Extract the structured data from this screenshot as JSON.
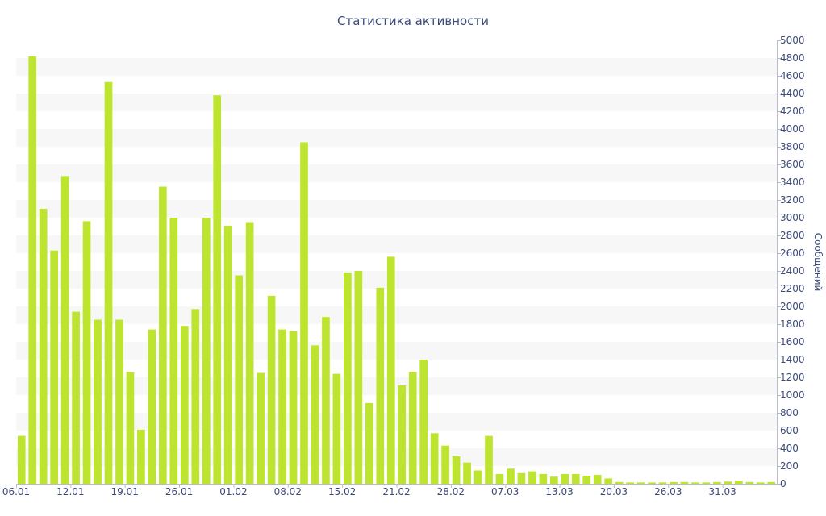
{
  "chart_data": {
    "type": "bar",
    "title": "Статистика активности",
    "xlabel": "",
    "ylabel": "Сообщений",
    "ylim": [
      0,
      5000
    ],
    "y_ticks": [
      0,
      200,
      400,
      600,
      800,
      1000,
      1200,
      1400,
      1600,
      1800,
      2000,
      2200,
      2400,
      2600,
      2800,
      3000,
      3200,
      3400,
      3600,
      3800,
      4000,
      4200,
      4400,
      4600,
      4800,
      5000
    ],
    "y_axis_position": "right",
    "grid": "alternating horizontal bands",
    "x_tick_labels": [
      {
        "label": "06.01",
        "index": 0
      },
      {
        "label": "12.01",
        "index": 5
      },
      {
        "label": "19.01",
        "index": 10
      },
      {
        "label": "26.01",
        "index": 15
      },
      {
        "label": "01.02",
        "index": 20
      },
      {
        "label": "08.02",
        "index": 25
      },
      {
        "label": "15.02",
        "index": 30
      },
      {
        "label": "21.02",
        "index": 35
      },
      {
        "label": "28.02",
        "index": 40
      },
      {
        "label": "07.03",
        "index": 45
      },
      {
        "label": "13.03",
        "index": 50
      },
      {
        "label": "20.03",
        "index": 55
      },
      {
        "label": "26.03",
        "index": 60
      },
      {
        "label": "31.03",
        "index": 65
      }
    ],
    "values": [
      540,
      4820,
      3100,
      2630,
      3470,
      1940,
      2960,
      1850,
      4530,
      1850,
      1260,
      610,
      1740,
      3350,
      3000,
      1780,
      1970,
      3000,
      4380,
      2910,
      2350,
      2950,
      1250,
      2120,
      1740,
      1720,
      3850,
      1560,
      1880,
      1240,
      2380,
      2400,
      910,
      2210,
      2560,
      1110,
      1260,
      1400,
      570,
      430,
      310,
      240,
      150,
      540,
      110,
      170,
      120,
      140,
      110,
      80,
      110,
      110,
      90,
      100,
      60,
      20,
      15,
      15,
      15,
      15,
      20,
      20,
      15,
      15,
      20,
      25,
      35,
      20,
      15,
      20
    ],
    "bar_color": "#bde530",
    "band_color": "#f7f7f7",
    "text_color": "#3b4a7a"
  }
}
